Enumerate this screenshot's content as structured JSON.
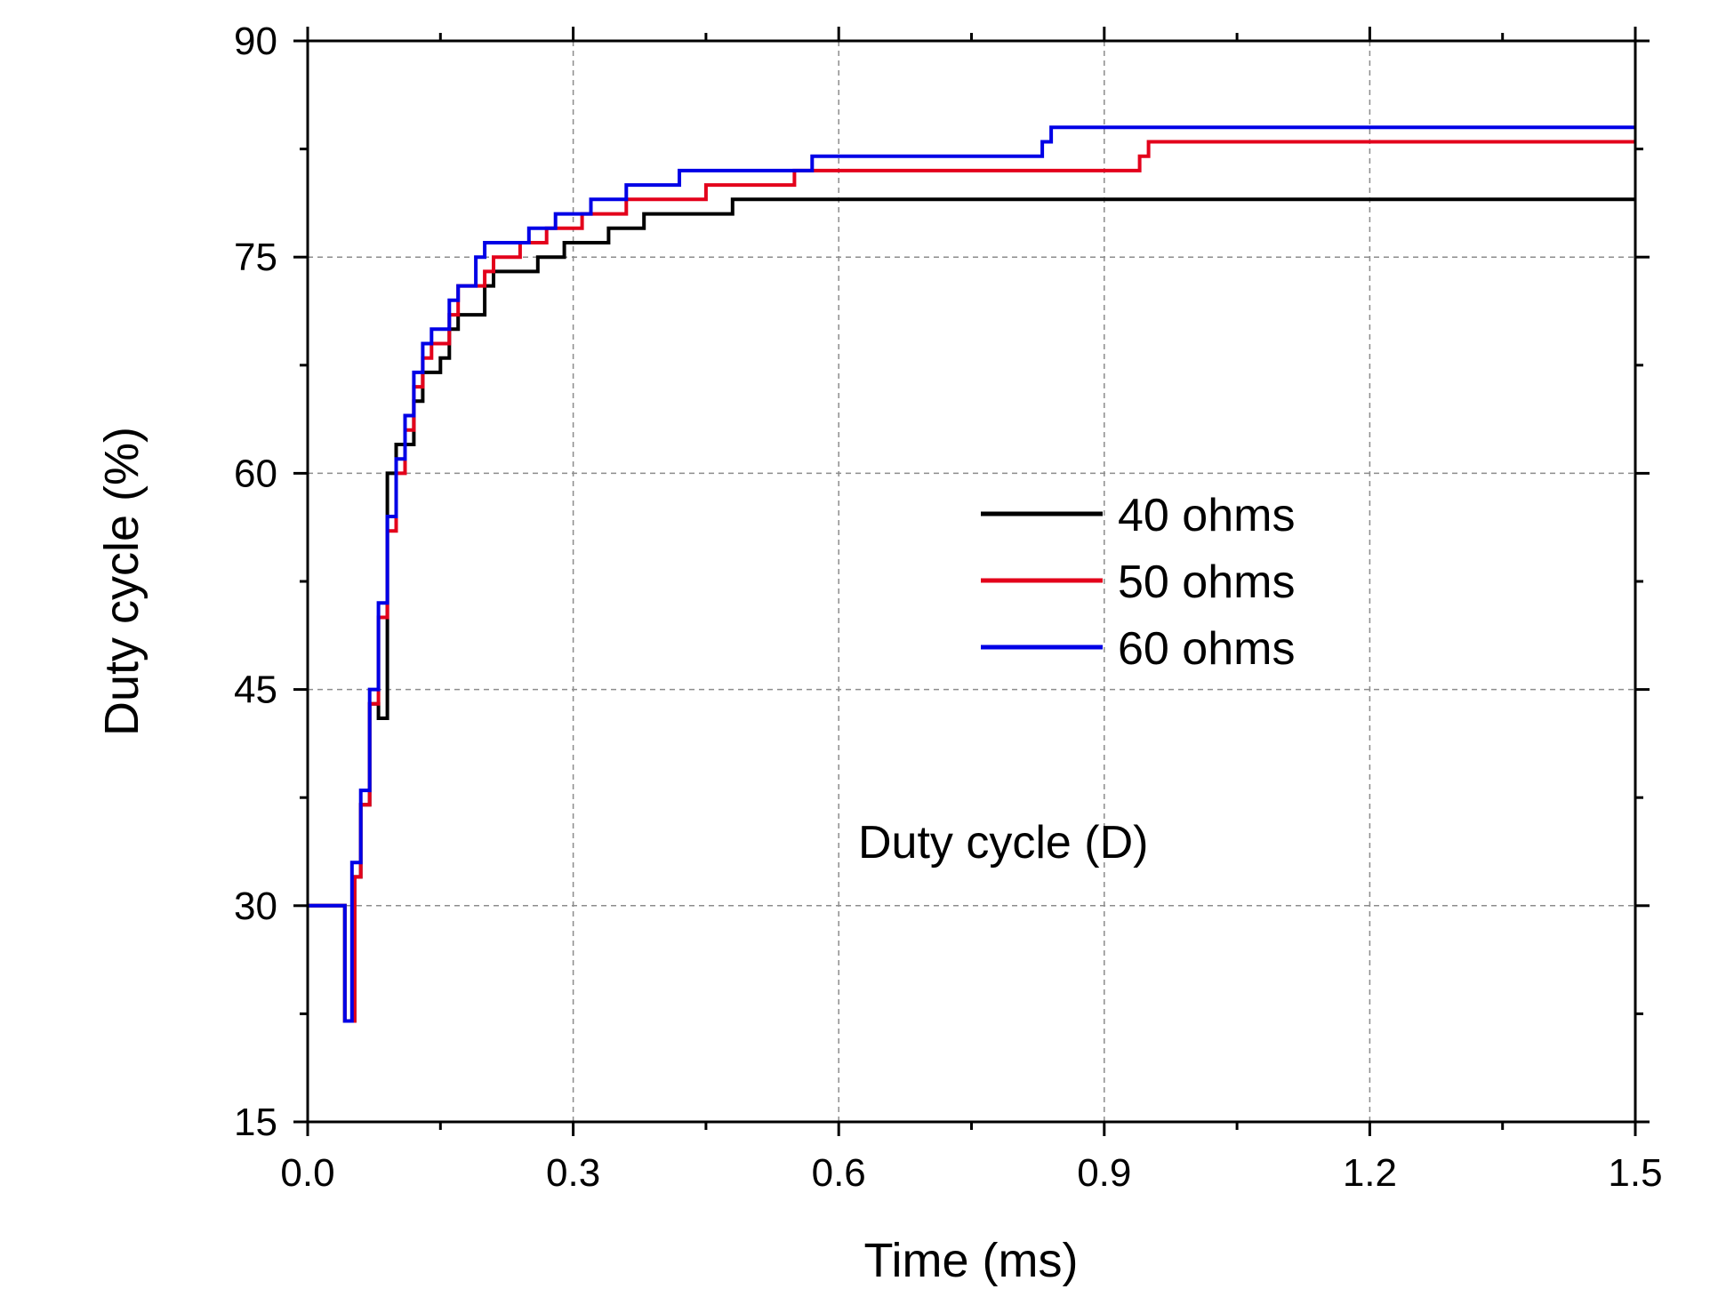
{
  "chart_data": {
    "type": "line",
    "step": true,
    "xlabel": "Time (ms)",
    "ylabel": "Duty cycle (%)",
    "annotation": "Duty cycle (D)",
    "xlim": [
      0,
      1.5
    ],
    "ylim": [
      15,
      90
    ],
    "x_ticks": [
      0.0,
      0.3,
      0.6,
      0.9,
      1.2,
      1.5
    ],
    "x_tick_labels": [
      "0.0",
      "0.3",
      "0.6",
      "0.9",
      "1.2",
      "1.5"
    ],
    "y_ticks": [
      15,
      30,
      45,
      60,
      75,
      90
    ],
    "y_tick_labels": [
      "15",
      "30",
      "45",
      "60",
      "75",
      "90"
    ],
    "grid": true,
    "legend_position": "center-right",
    "series": [
      {
        "name": "40 ohms",
        "color": "#000000",
        "x": [
          0,
          0.042,
          0.053,
          0.06,
          0.07,
          0.08,
          0.09,
          0.1,
          0.12,
          0.13,
          0.14,
          0.15,
          0.16,
          0.17,
          0.18,
          0.2,
          0.21,
          0.26,
          0.29,
          0.34,
          0.38,
          0.48,
          1.5
        ],
        "y": [
          30,
          22,
          32,
          37,
          44,
          43,
          60,
          62,
          65,
          67,
          67,
          68,
          70,
          71,
          71,
          73,
          74,
          75,
          76,
          77,
          78,
          79,
          79
        ]
      },
      {
        "name": "50 ohms",
        "color": "#e3001b",
        "x": [
          0,
          0.042,
          0.053,
          0.06,
          0.07,
          0.08,
          0.09,
          0.1,
          0.11,
          0.12,
          0.13,
          0.14,
          0.16,
          0.17,
          0.19,
          0.2,
          0.21,
          0.24,
          0.27,
          0.31,
          0.36,
          0.45,
          0.55,
          0.94,
          0.95,
          1.5
        ],
        "y": [
          30,
          22,
          32,
          37,
          44,
          50,
          56,
          60,
          63,
          66,
          68,
          69,
          71,
          73,
          73,
          74,
          75,
          76,
          77,
          78,
          79,
          80,
          81,
          82,
          83,
          83
        ]
      },
      {
        "name": "60 ohms",
        "color": "#0000e6",
        "x": [
          0,
          0.042,
          0.05,
          0.06,
          0.07,
          0.08,
          0.09,
          0.1,
          0.11,
          0.12,
          0.13,
          0.14,
          0.16,
          0.17,
          0.19,
          0.2,
          0.25,
          0.28,
          0.32,
          0.36,
          0.42,
          0.57,
          0.83,
          0.84,
          1.5
        ],
        "y": [
          30,
          22,
          33,
          38,
          45,
          51,
          57,
          61,
          64,
          67,
          69,
          70,
          72,
          73,
          75,
          76,
          77,
          78,
          79,
          80,
          81,
          82,
          83,
          84,
          84
        ]
      }
    ]
  }
}
